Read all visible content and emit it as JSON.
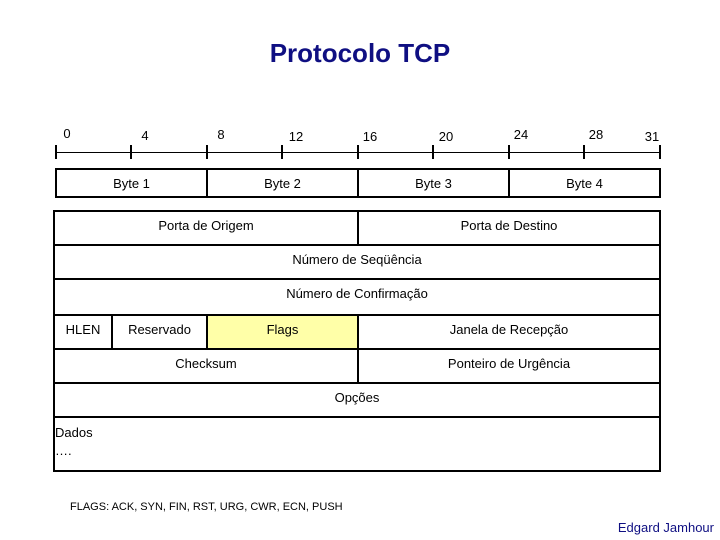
{
  "title": "Protocolo TCP",
  "bit_ruler": [
    "0",
    "4",
    "8",
    "12",
    "16",
    "20",
    "24",
    "28",
    "31"
  ],
  "bytes": [
    "Byte 1",
    "Byte 2",
    "Byte 3",
    "Byte 4"
  ],
  "fields": {
    "source_port": "Porta de Origem",
    "dest_port": "Porta de Destino",
    "seq": "Número de Seqüência",
    "ack": "Número de Confirmação",
    "hlen": "HLEN",
    "reserved": "Reservado",
    "flags": "Flags",
    "window": "Janela de Recepção",
    "checksum": "Checksum",
    "urgent": "Ponteiro de Urgência",
    "options": "Opções",
    "data": "Dados",
    "data_cont": "…."
  },
  "flags_legend": "FLAGS: ACK, SYN, FIN, RST, URG, CWR, ECN, PUSH",
  "author": "Edgard Jamhour",
  "colors": {
    "title": "#0f0f82",
    "flags_highlight": "#ffffa8"
  }
}
